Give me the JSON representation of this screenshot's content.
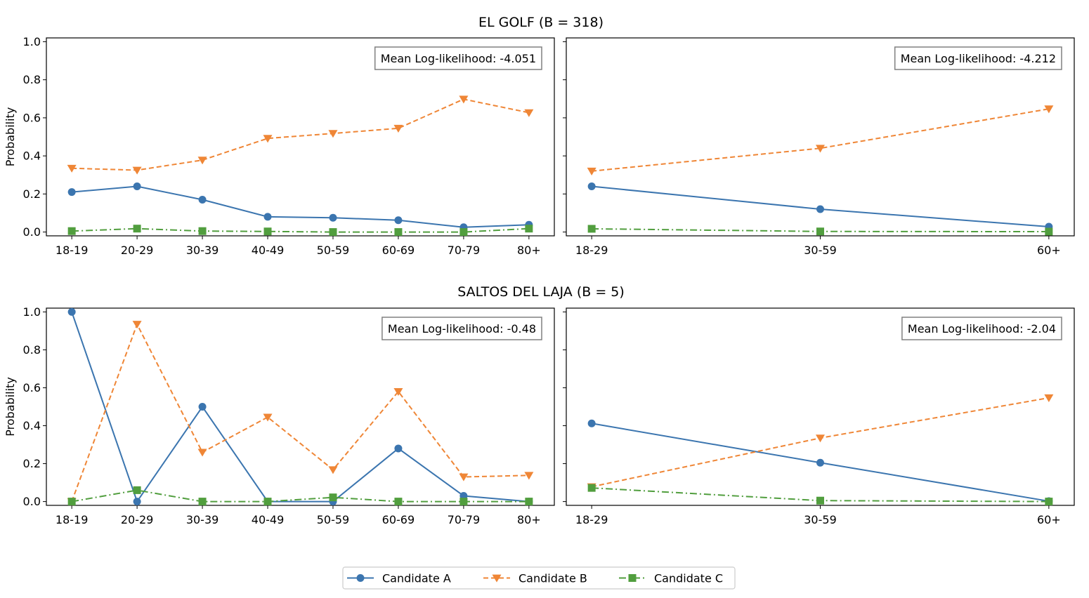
{
  "legend": {
    "placement": "bottom-center",
    "entries": [
      "Candidate A",
      "Candidate B",
      "Candidate C"
    ]
  },
  "colors": {
    "Candidate A": "#3b75af",
    "Candidate B": "#ef8636",
    "Candidate C": "#519e3e"
  },
  "chart_data": [
    {
      "type": "line",
      "group_title": "EL GOLF (B = 318)",
      "ylabel": "Probability",
      "ylim": [
        0,
        1.0
      ],
      "yticks": [
        "0.0",
        "0.2",
        "0.4",
        "0.6",
        "0.8",
        "1.0"
      ],
      "grid": false,
      "categories": [
        "18-19",
        "20-29",
        "30-39",
        "40-49",
        "50-59",
        "60-69",
        "70-79",
        "80+"
      ],
      "annotation": "Mean Log-likelihood: -4.051",
      "series": [
        {
          "name": "Candidate A",
          "values": [
            0.21,
            0.24,
            0.17,
            0.08,
            0.075,
            0.062,
            0.025,
            0.038
          ]
        },
        {
          "name": "Candidate B",
          "values": [
            0.335,
            0.325,
            0.378,
            0.492,
            0.518,
            0.545,
            0.698,
            0.627
          ]
        },
        {
          "name": "Candidate C",
          "values": [
            0.005,
            0.018,
            0.005,
            0.003,
            0.0,
            0.0,
            0.0,
            0.018
          ]
        }
      ]
    },
    {
      "type": "line",
      "ylabel": "",
      "ylim": [
        0,
        1.0
      ],
      "grid": false,
      "categories": [
        "18-29",
        "30-59",
        "60+"
      ],
      "annotation": "Mean Log-likelihood: -4.212",
      "series": [
        {
          "name": "Candidate A",
          "values": [
            0.24,
            0.12,
            0.028
          ]
        },
        {
          "name": "Candidate B",
          "values": [
            0.32,
            0.44,
            0.647
          ]
        },
        {
          "name": "Candidate C",
          "values": [
            0.017,
            0.003,
            0.002
          ]
        }
      ]
    },
    {
      "type": "line",
      "group_title": "SALTOS DEL LAJA (B = 5)",
      "ylabel": "Probability",
      "ylim": [
        0,
        1.0
      ],
      "yticks": [
        "0.0",
        "0.2",
        "0.4",
        "0.6",
        "0.8",
        "1.0"
      ],
      "grid": false,
      "categories": [
        "18-19",
        "20-29",
        "30-39",
        "40-49",
        "50-59",
        "60-69",
        "70-79",
        "80+"
      ],
      "annotation": "Mean Log-likelihood: -0.48",
      "series": [
        {
          "name": "Candidate A",
          "values": [
            1.0,
            0.0,
            0.5,
            0.0,
            0.0,
            0.28,
            0.03,
            0.0
          ]
        },
        {
          "name": "Candidate B",
          "values": [
            0.0,
            0.935,
            0.26,
            0.445,
            0.168,
            0.58,
            0.13,
            0.138
          ]
        },
        {
          "name": "Candidate C",
          "values": [
            0.0,
            0.06,
            0.0,
            0.0,
            0.022,
            0.0,
            0.0,
            0.0
          ]
        }
      ]
    },
    {
      "type": "line",
      "ylabel": "",
      "ylim": [
        0,
        1.0
      ],
      "grid": false,
      "categories": [
        "18-29",
        "30-59",
        "60+"
      ],
      "annotation": "Mean Log-likelihood: -2.04",
      "series": [
        {
          "name": "Candidate A",
          "values": [
            0.412,
            0.205,
            0.002
          ]
        },
        {
          "name": "Candidate B",
          "values": [
            0.078,
            0.335,
            0.547
          ]
        },
        {
          "name": "Candidate C",
          "values": [
            0.072,
            0.005,
            0.0
          ]
        }
      ]
    }
  ]
}
